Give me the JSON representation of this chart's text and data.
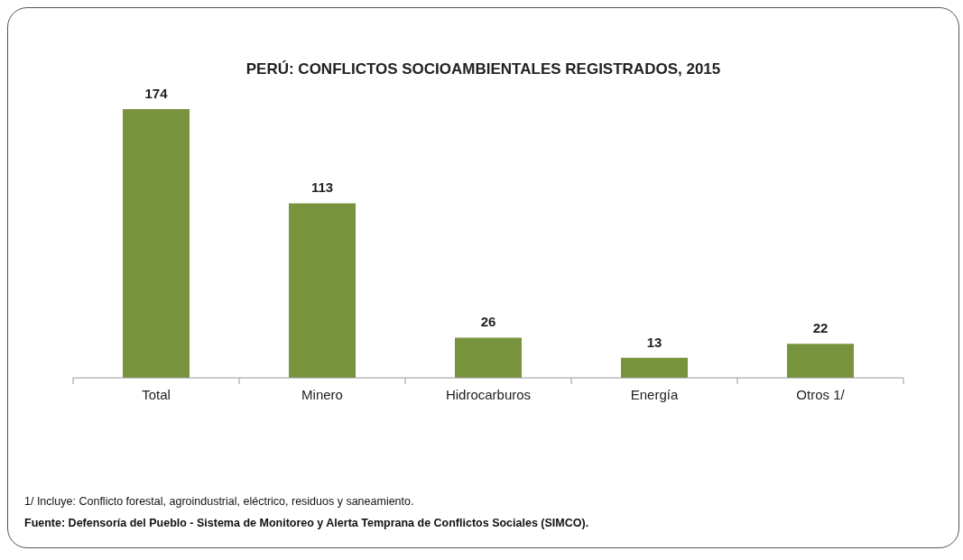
{
  "chart_data": {
    "type": "bar",
    "title": "PERÚ: CONFLICTOS SOCIOAMBIENTALES REGISTRADOS, 2015",
    "categories": [
      "Total",
      "Minero",
      "Hidrocarburos",
      "Energía",
      "Otros 1/"
    ],
    "values": [
      174,
      113,
      26,
      13,
      22
    ],
    "color": "#77933c",
    "data_labels": true,
    "grid": false,
    "legend": false,
    "annotations": [
      "1/ Incluye: Conflicto forestal, agroindustrial, eléctrico, residuos y saneamiento.",
      "Fuente: Defensoría del Pueblo - Sistema de Monitoreo y Alerta Temprana de Conflictos Sociales (SIMCO)."
    ]
  }
}
